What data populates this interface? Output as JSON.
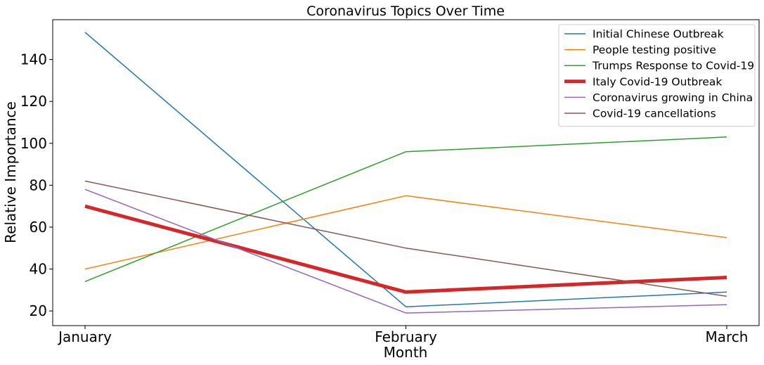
{
  "chart_data": {
    "type": "line",
    "title": "Coronavirus Topics Over Time",
    "xlabel": "Month",
    "ylabel": "Relative Importance",
    "categories": [
      "January",
      "February",
      "March"
    ],
    "ylim": [
      13,
      159
    ],
    "yticks": [
      20,
      40,
      60,
      80,
      100,
      120,
      140
    ],
    "grid": false,
    "legend_position": "top-right",
    "series": [
      {
        "name": "Initial Chinese Outbreak",
        "values": [
          153,
          22,
          29
        ],
        "color": "#1f77b4",
        "emphasis": false
      },
      {
        "name": "People testing positive",
        "values": [
          40,
          75,
          55
        ],
        "color": "#ff7f0e",
        "emphasis": false
      },
      {
        "name": "Trumps Response to Covid-19",
        "values": [
          34,
          96,
          103
        ],
        "color": "#2ca02c",
        "emphasis": false
      },
      {
        "name": "Italy Covid-19 Outbreak",
        "values": [
          70,
          29,
          36
        ],
        "color": "#d62728",
        "emphasis": true
      },
      {
        "name": "Coronavirus growing in China",
        "values": [
          78,
          19,
          23
        ],
        "color": "#9467bd",
        "emphasis": false
      },
      {
        "name": "Covid-19 cancellations",
        "values": [
          82,
          50,
          27
        ],
        "color": "#8c564b",
        "emphasis": false
      }
    ]
  }
}
